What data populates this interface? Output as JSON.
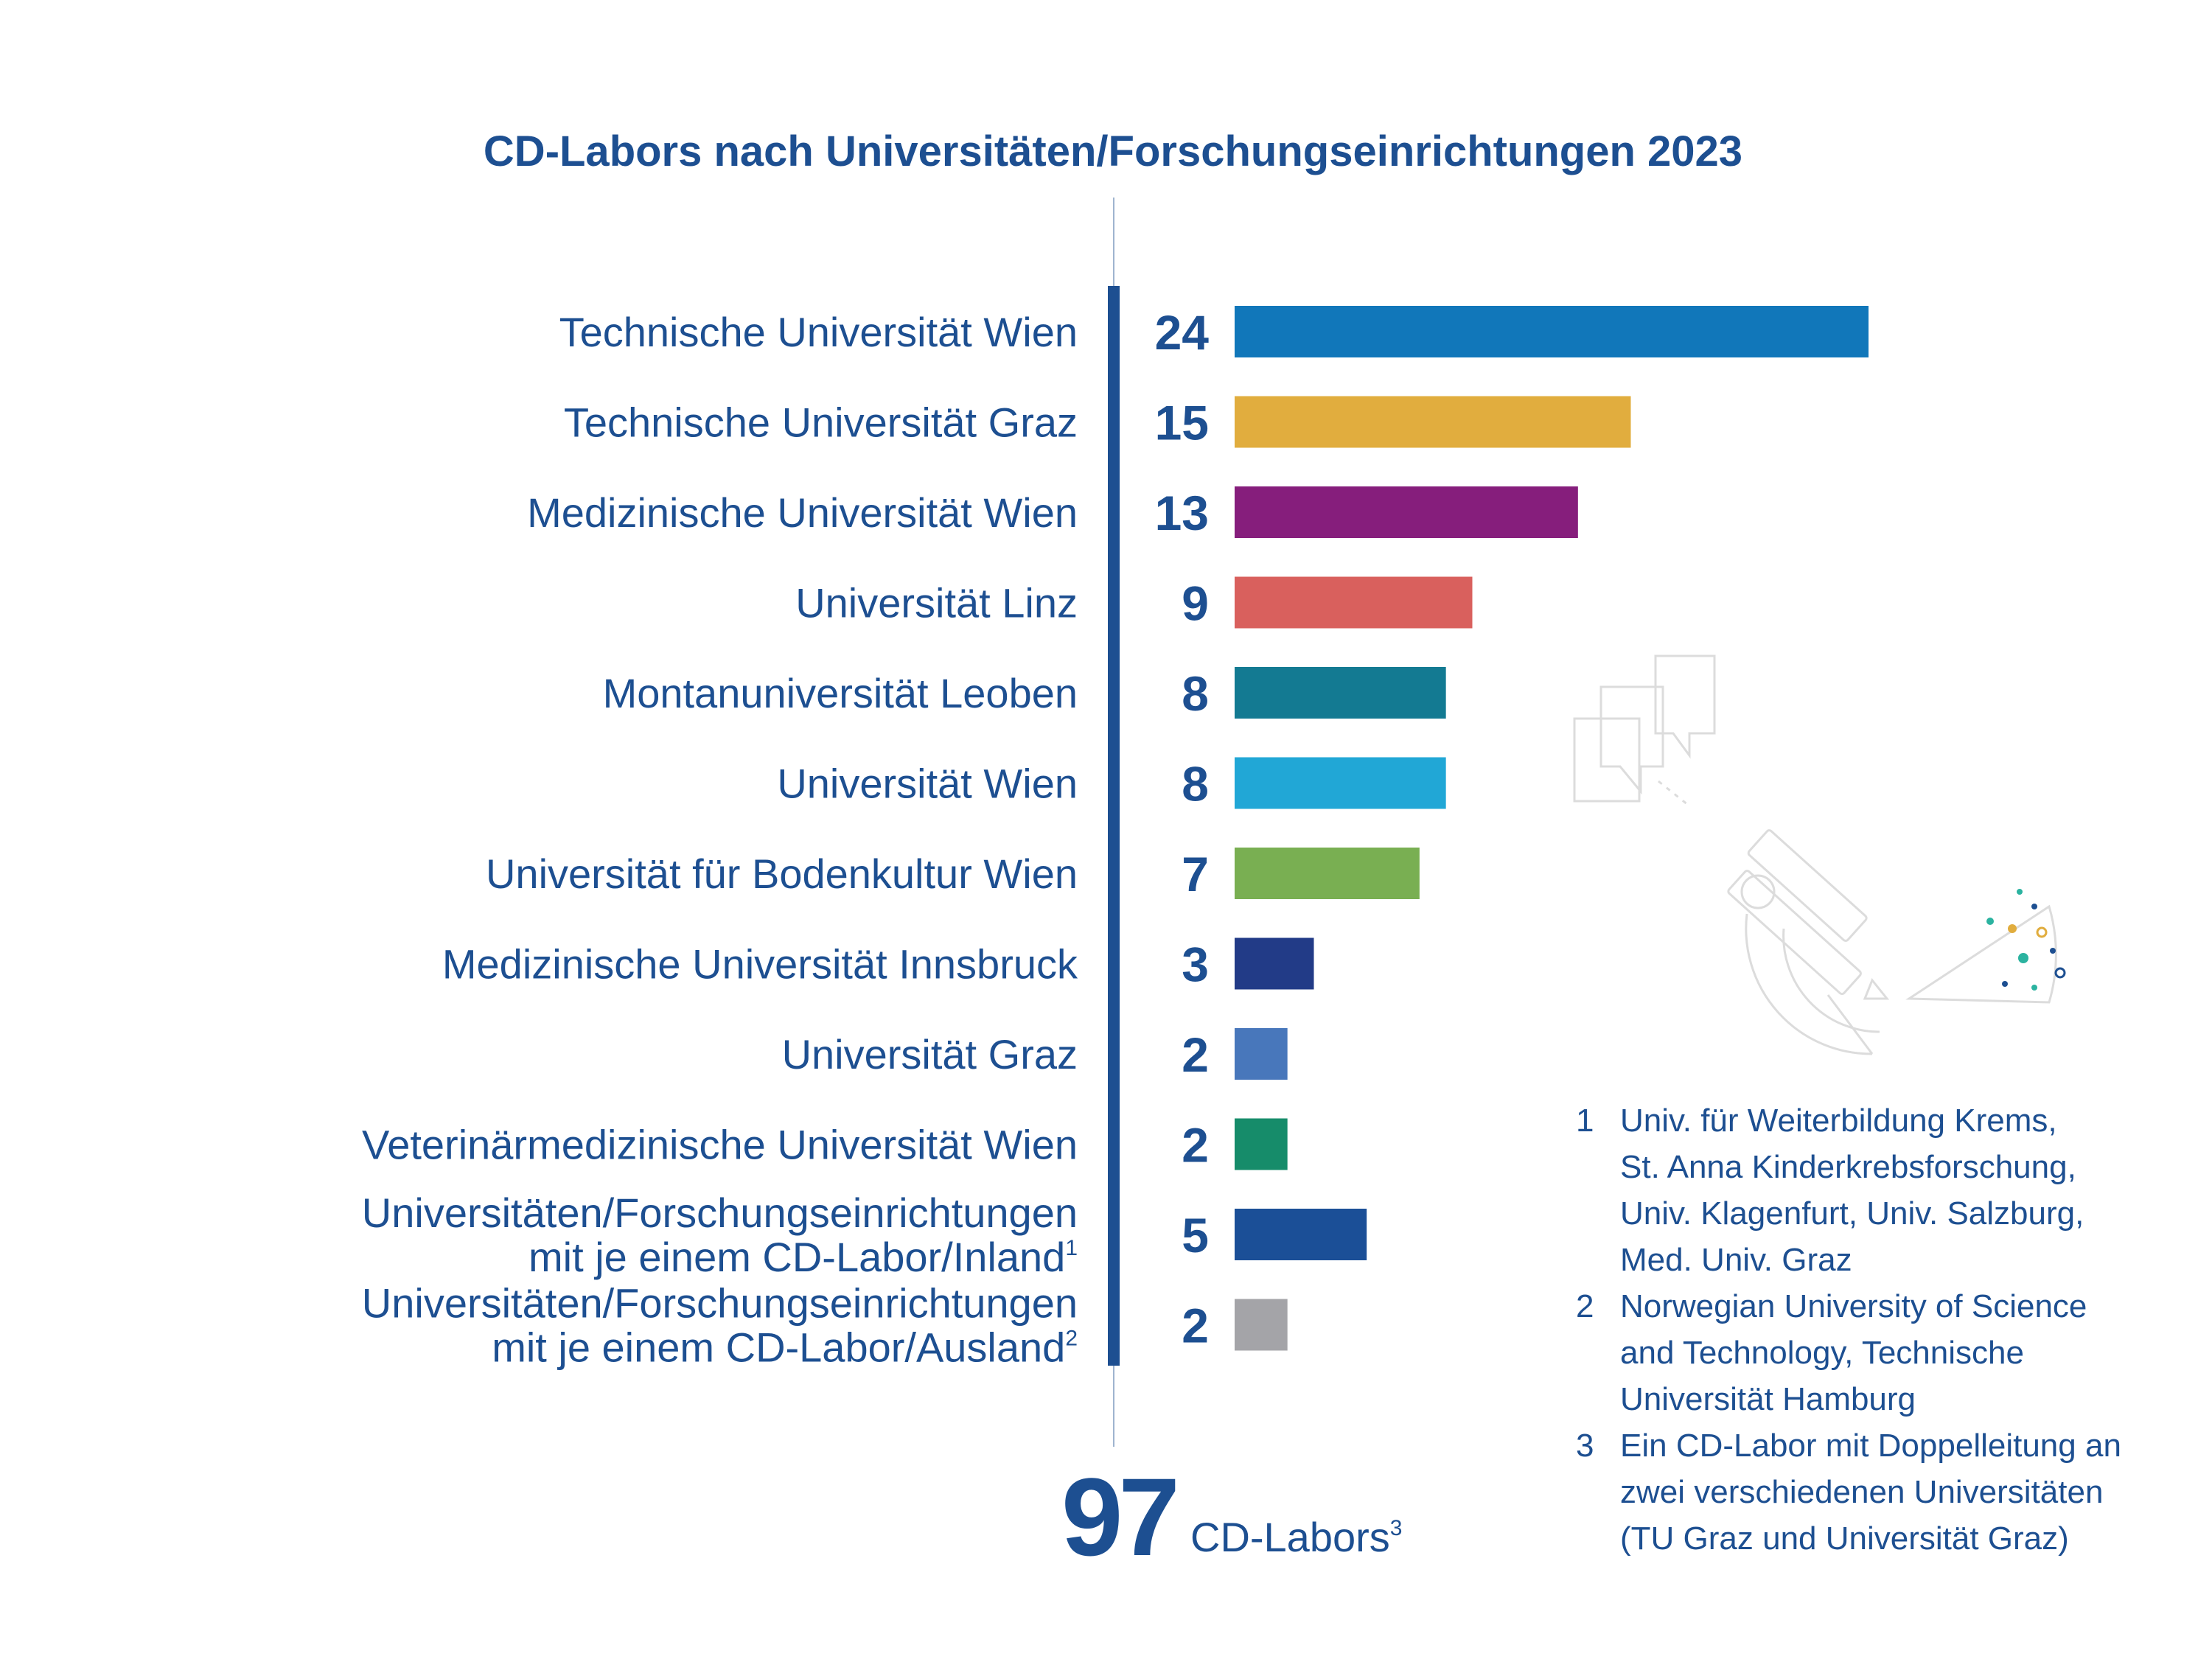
{
  "chart_data": {
    "type": "bar",
    "orientation": "horizontal",
    "title": "CD-Labors nach Universitäten/Forschungseinrichtungen 2023",
    "categories": [
      {
        "lines": [
          "Technische Universität Wien"
        ],
        "note": ""
      },
      {
        "lines": [
          "Technische Universität Graz"
        ],
        "note": ""
      },
      {
        "lines": [
          "Medizinische Universität Wien"
        ],
        "note": ""
      },
      {
        "lines": [
          "Universität Linz"
        ],
        "note": ""
      },
      {
        "lines": [
          "Montanuniversität Leoben"
        ],
        "note": ""
      },
      {
        "lines": [
          "Universität Wien"
        ],
        "note": ""
      },
      {
        "lines": [
          "Universität für Bodenkultur Wien"
        ],
        "note": ""
      },
      {
        "lines": [
          "Medizinische Universität Innsbruck"
        ],
        "note": ""
      },
      {
        "lines": [
          "Universität Graz"
        ],
        "note": ""
      },
      {
        "lines": [
          "Veterinärmedizinische Universität Wien"
        ],
        "note": ""
      },
      {
        "lines": [
          "Universitäten/Forschungseinrichtungen",
          "mit je einem CD-Labor/Inland"
        ],
        "note": "1"
      },
      {
        "lines": [
          "Universitäten/Forschungseinrichtungen",
          "mit je einem CD-Labor/Ausland"
        ],
        "note": "2"
      }
    ],
    "values": [
      24,
      15,
      13,
      9,
      8,
      8,
      7,
      3,
      2,
      2,
      5,
      2
    ],
    "colors": [
      "#1177ba",
      "#e1ad3e",
      "#861e7c",
      "#d9605d",
      "#137a92",
      "#21a7d6",
      "#79af52",
      "#223b87",
      "#4877bb",
      "#168c6a",
      "#1b4f97",
      "#a4a4a8"
    ],
    "value_color": "#1d4f91",
    "xlim": [
      0,
      24
    ],
    "grid": false,
    "legend": "none"
  },
  "total": {
    "number": "97",
    "label": "CD-Labors",
    "note": "3"
  },
  "footnotes": [
    {
      "num": "1",
      "lines": [
        "Univ. für Weiterbildung Krems,",
        "St. Anna Kinderkrebsforschung,",
        "Univ. Klagenfurt, Univ. Salzburg,",
        "Med. Univ. Graz"
      ]
    },
    {
      "num": "2",
      "lines": [
        "Norwegian University of Science",
        "and Technology, Technische",
        "Universität Hamburg"
      ]
    },
    {
      "num": "3",
      "lines": [
        "Ein CD-Labor mit Doppelleitung an",
        "zwei verschiedenen Universitäten",
        "(TU Graz und Universität Graz)"
      ]
    }
  ],
  "illustration": {
    "icons": [
      "speech-bubbles-icon",
      "microscope-icon",
      "sample-dots-icon"
    ],
    "color": "#dcdcdc"
  }
}
